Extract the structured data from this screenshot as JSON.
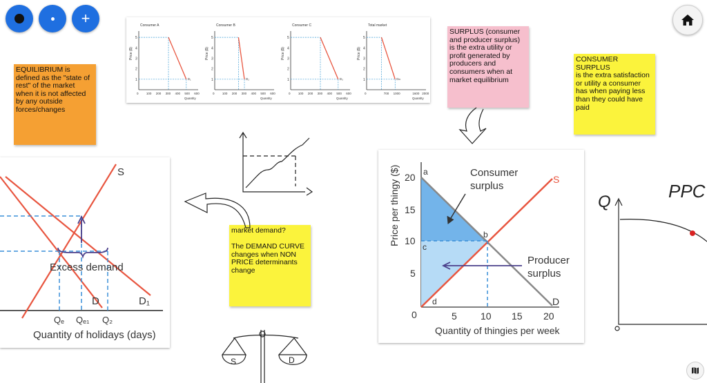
{
  "toolbar": {
    "buttons": [
      {
        "name": "pen-large-button",
        "icon": "large-dot-icon"
      },
      {
        "name": "pen-small-button",
        "icon": "small-dot-icon"
      },
      {
        "name": "add-button",
        "icon": "plus-icon",
        "label": "+"
      }
    ]
  },
  "colors": {
    "accent": "#1f6fe0",
    "note_orange": "#f5a033",
    "note_pink": "#f6bfcd",
    "note_yellow": "#fbf33c",
    "supply_red": "#e8553f",
    "demand_red": "#e8553f"
  },
  "notes": {
    "equilibrium": "EQUILIBRIUM is\ndefined as the \"state of\nrest\" of the market\nwhen it is not affected\nby any outside\nforces/changes",
    "surplus": "SURPLUS (consumer\nand producer surplus)\nis the extra utility or\nprofit generated by\nproducers and\nconsumers when at\nmarket equilibrium",
    "consumer_surplus": "CONSUMER SURPLUS\nis the extra satisfaction\nor utility a consumer\nhas when paying less\nthan they could have\npaid",
    "market_demand": "market demand?\n\nThe DEMAND CURVE\nchanges when NON\nPRICE determinants\nchange"
  },
  "market_chart": {
    "panels": [
      {
        "title": "Consumer A",
        "xticks": [
          "0",
          "100",
          "200",
          "300",
          "400",
          "500",
          "600"
        ],
        "curve": "D₁"
      },
      {
        "title": "Consumer B",
        "xticks": [
          "0",
          "100",
          "200",
          "300",
          "400",
          "500",
          "600"
        ],
        "curve": "D₂"
      },
      {
        "title": "Consumer C",
        "xticks": [
          "0",
          "100",
          "200",
          "300",
          "400",
          "500",
          "600"
        ],
        "curve": "D₃"
      },
      {
        "title": "Total market",
        "xticks": [
          "0",
          "",
          "700",
          "1000",
          "",
          "1600",
          "2000"
        ],
        "curve": "Dₘ"
      }
    ],
    "yticks": [
      "1",
      "2",
      "3",
      "4",
      "5"
    ],
    "ylabel": "Price ($)",
    "xlabel": "Quantity"
  },
  "excess_chart": {
    "s_label": "S",
    "d_label": "D",
    "d1_label": "D₁",
    "excess_label": "Excess demand",
    "q_labels": [
      "Qₑ",
      "Qₑ₁",
      "Q₂"
    ],
    "xlabel": "Quantity of holidays (days)"
  },
  "surplus_chart": {
    "ylabel": "Price per thingy ($)",
    "xlabel": "Quantity of thingies per week",
    "yticks": [
      "20",
      "15",
      "10",
      "5"
    ],
    "xticks": [
      "0",
      "5",
      "10",
      "15",
      "20"
    ],
    "points": [
      "a",
      "b",
      "c",
      "d"
    ],
    "consumer_label": "Consumer\nsurplus",
    "producer_label": "Producer\nsurplus",
    "s_label": "S",
    "d_label": "D"
  },
  "sketch_ppc": {
    "q_label": "Q",
    "ppc_label": "PPC",
    "origin_label": "o"
  },
  "scale_sketch": {
    "s_label": "S",
    "d_label": "D"
  }
}
